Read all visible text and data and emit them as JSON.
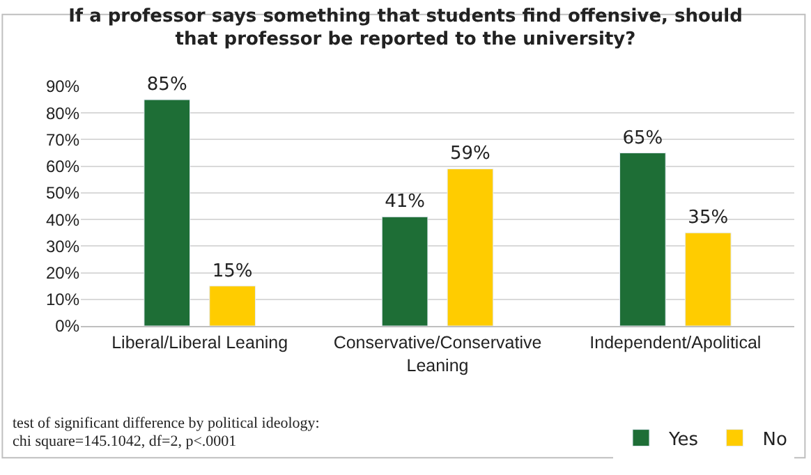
{
  "chart_data": {
    "type": "bar",
    "title": "If a professor says something that students find offensive, should that professor be reported to the university?",
    "categories": [
      "Liberal/Liberal Leaning",
      "Conservative/Conservative Leaning",
      "Independent/Apolitical"
    ],
    "series": [
      {
        "name": "Yes",
        "color": "#1e6e36",
        "values": [
          85,
          41,
          65
        ],
        "value_labels": [
          "85%",
          "41%",
          "65%"
        ]
      },
      {
        "name": "No",
        "color": "#ffcc00",
        "values": [
          15,
          59,
          35
        ],
        "value_labels": [
          "15%",
          "59%",
          "35%"
        ]
      }
    ],
    "ylim": [
      0,
      90
    ],
    "yticks": [
      {
        "value": 0,
        "label": "0%"
      },
      {
        "value": 10,
        "label": "10%"
      },
      {
        "value": 20,
        "label": "20%"
      },
      {
        "value": 30,
        "label": "30%"
      },
      {
        "value": 40,
        "label": "40%"
      },
      {
        "value": 50,
        "label": "50%"
      },
      {
        "value": 60,
        "label": "60%"
      },
      {
        "value": 70,
        "label": "70%"
      },
      {
        "value": 80,
        "label": "80%"
      },
      {
        "value": 90,
        "label": "90%"
      }
    ],
    "grid": "y",
    "legend": "bottom right",
    "annotations": [
      "test of significant difference by political ideology:",
      "chi square=145.1042, df=2, p<.0001"
    ]
  }
}
